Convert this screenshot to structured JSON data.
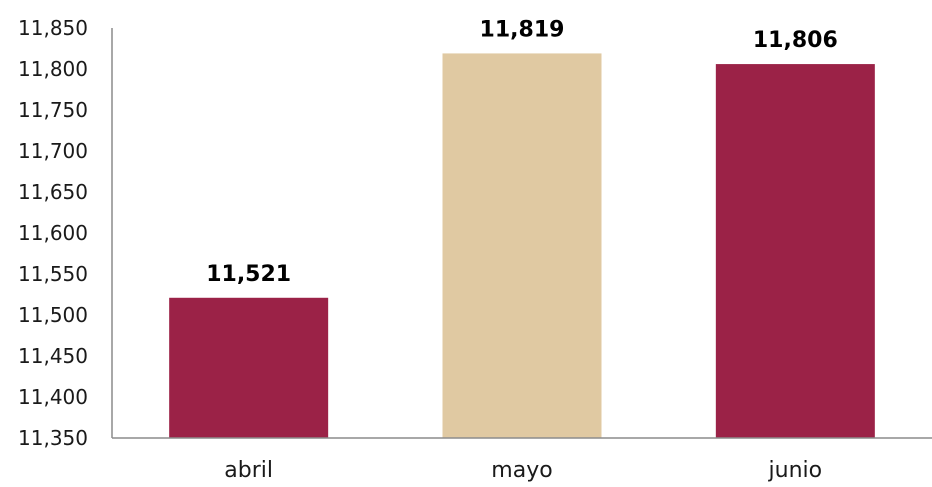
{
  "chart_data": {
    "type": "bar",
    "categories": [
      "abril",
      "mayo",
      "junio"
    ],
    "values": [
      11521,
      11819,
      11806
    ],
    "data_labels": [
      "11,521",
      "11,819",
      "11,806"
    ],
    "bar_colors": [
      "#9B2247",
      "#E0C9A2",
      "#9B2247"
    ],
    "ylim": [
      11350,
      11850
    ],
    "ytick_step": 50,
    "ytick_labels": [
      "11,350",
      "11,400",
      "11,450",
      "11,500",
      "11,550",
      "11,600",
      "11,650",
      "11,700",
      "11,750",
      "11,800",
      "11,850"
    ],
    "grid": false,
    "legend": "none"
  }
}
